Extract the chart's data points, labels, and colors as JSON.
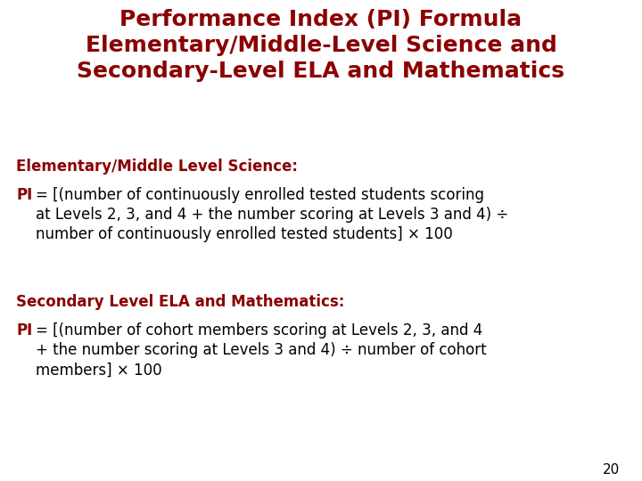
{
  "bg_color": "#ffffff",
  "title_color": "#8B0000",
  "heading_color": "#8B0000",
  "body_color": "#000000",
  "pi_color": "#8B0000",
  "title_lines": [
    "Performance Index (PI) Formula",
    "Elementary/Middle-Level Science and",
    "Secondary-Level ELA and Mathematics"
  ],
  "section1_heading": "Elementary/Middle Level Science:",
  "section1_pi_label": "PI",
  "section1_body": "= [(number of continuously enrolled tested students scoring\nat Levels 2, 3, and 4 + the number scoring at Levels 3 and 4) ÷\nnumber of continuously enrolled tested students] × 100",
  "section2_heading": "Secondary Level ELA and Mathematics:",
  "section2_pi_label": "PI",
  "section2_body": "= [(number of cohort members scoring at Levels 2, 3, and 4\n+ the number scoring at Levels 3 and 4) ÷ number of cohort\nmembers] × 100",
  "page_number": "20",
  "title_fontsize": 18,
  "heading_fontsize": 12,
  "body_fontsize": 12,
  "page_fontsize": 11
}
